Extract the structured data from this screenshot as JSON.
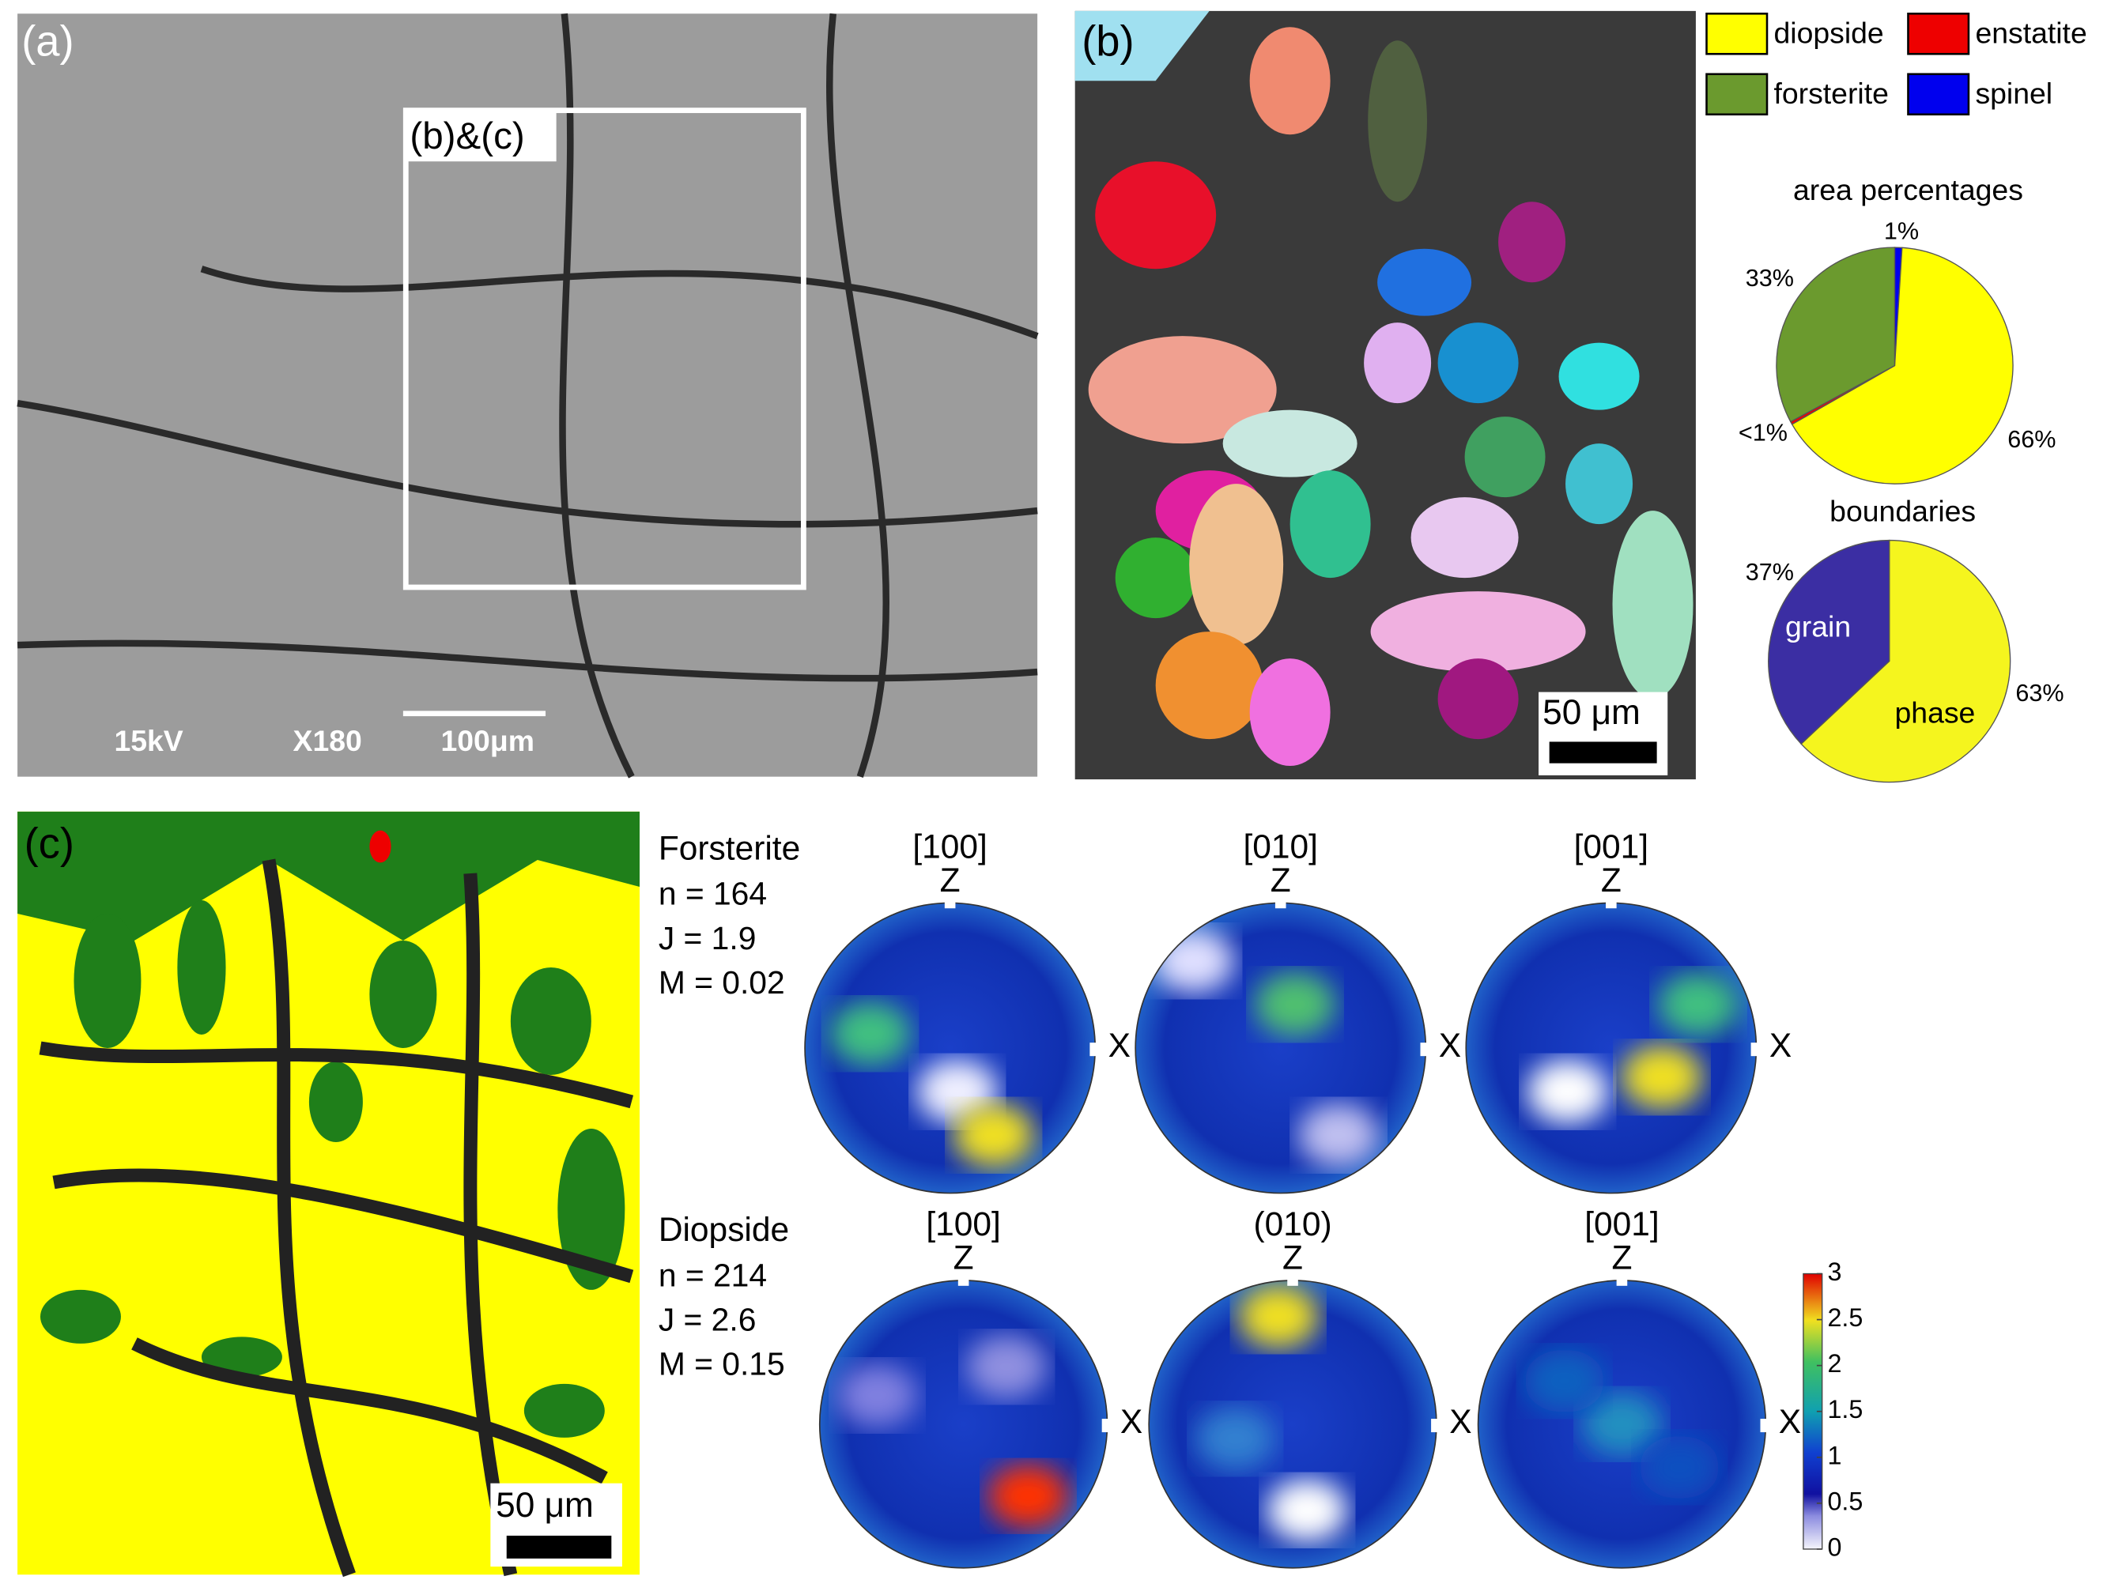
{
  "panel_a": {
    "label": "(a)",
    "inset_label": "(b)&(c)",
    "voltage": "15kV",
    "magnification": "X180",
    "scale_bar": "100μm"
  },
  "panel_b": {
    "label": "(b)",
    "scale_bar": "50 μm"
  },
  "legend": [
    {
      "name": "diopside",
      "color": "#ffff00"
    },
    {
      "name": "enstatite",
      "color": "#ee0000"
    },
    {
      "name": "forsterite",
      "color": "#6b9a2e"
    },
    {
      "name": "spinel",
      "color": "#0000ee"
    }
  ],
  "panel_c": {
    "label": "(c)",
    "scale_bar": "50 μm"
  },
  "pole_figures": [
    {
      "mineral": "Forsterite",
      "stats": [
        "n = 164",
        "J = 1.9",
        "M = 0.02"
      ],
      "figures": [
        {
          "label": "[100]",
          "top": "Z",
          "right": "X"
        },
        {
          "label": "[010]",
          "top": "Z",
          "right": "X"
        },
        {
          "label": "[001]",
          "top": "Z",
          "right": "X"
        }
      ]
    },
    {
      "mineral": "Diopside",
      "stats": [
        "n = 214",
        "J = 2.6",
        "M = 0.15"
      ],
      "figures": [
        {
          "label": "[100]",
          "top": "Z",
          "right": "X"
        },
        {
          "label": "(010)",
          "top": "Z",
          "right": "X"
        },
        {
          "label": "[001]",
          "top": "Z",
          "right": "X"
        }
      ]
    }
  ],
  "chart_data": [
    {
      "type": "pie",
      "title": "area percentages",
      "values": [
        1,
        66,
        0.4,
        33
      ],
      "value_labels": [
        "1%",
        "66%",
        "<1%",
        "33%"
      ],
      "colors": [
        "#0000ee",
        "#ffff00",
        "#ee0000",
        "#6b9a2e"
      ]
    },
    {
      "type": "pie",
      "title": "boundaries",
      "categories": [
        "phase",
        "grain"
      ],
      "values": [
        63,
        37
      ],
      "value_labels": [
        "63%",
        "37%"
      ],
      "colors": [
        "#f5f51e",
        "#3b2ea3"
      ]
    },
    {
      "type": "colorbar",
      "ylim": [
        0,
        3
      ],
      "yticks": [
        0,
        0.5,
        1,
        1.5,
        2,
        2.5,
        3
      ]
    }
  ]
}
